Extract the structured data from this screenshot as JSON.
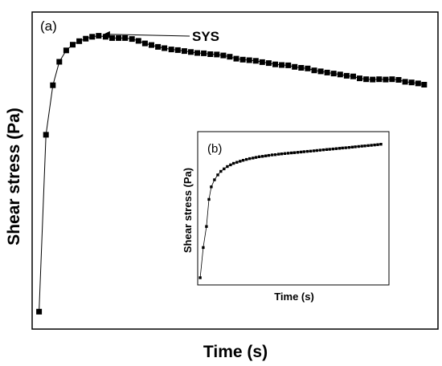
{
  "chart_data": [
    {
      "type": "line",
      "panel_label": "(a)",
      "xlabel": "Time (s)",
      "ylabel": "Shear stress (Pa)",
      "xlim": [
        0,
        100
      ],
      "ylim": [
        0,
        100
      ],
      "ticks": "none",
      "grid": false,
      "annotations": [
        {
          "text": "SYS",
          "target_x": 16.6,
          "target_y": 92.5
        }
      ],
      "series": [
        {
          "marker": "square",
          "x": [
            1.7,
            3.4,
            5.1,
            6.7,
            8.4,
            10.0,
            11.6,
            13.2,
            14.8,
            16.4,
            18.1,
            19.7,
            21.3,
            22.9,
            24.6,
            26.2,
            27.8,
            29.4,
            31.0,
            32.6,
            34.3,
            35.9,
            37.5,
            39.1,
            40.7,
            42.3,
            43.9,
            45.5,
            47.1,
            48.7,
            50.3,
            51.9,
            53.5,
            55.1,
            56.7,
            58.3,
            59.9,
            61.5,
            63.1,
            64.7,
            66.3,
            67.9,
            69.5,
            71.1,
            72.7,
            74.3,
            75.9,
            77.5,
            79.1,
            80.7,
            82.3,
            83.9,
            85.5,
            87.1,
            88.7,
            90.3,
            91.9,
            93.5,
            95.1,
            96.6
          ],
          "y": [
            5.5,
            61.3,
            76.9,
            84.3,
            87.9,
            89.7,
            90.8,
            91.6,
            92.2,
            92.5,
            92.2,
            91.8,
            91.8,
            91.8,
            91.5,
            90.9,
            90.1,
            89.6,
            89.0,
            88.6,
            88.2,
            88.0,
            87.7,
            87.4,
            87.1,
            87.0,
            86.7,
            86.6,
            86.3,
            85.9,
            85.3,
            85.0,
            84.8,
            84.6,
            84.2,
            83.9,
            83.5,
            83.3,
            83.2,
            82.7,
            82.4,
            82.2,
            81.6,
            81.3,
            80.9,
            80.6,
            80.3,
            79.9,
            79.7,
            79.1,
            78.8,
            78.7,
            78.8,
            78.7,
            78.8,
            78.6,
            78.0,
            77.8,
            77.5,
            77.1
          ]
        }
      ]
    },
    {
      "type": "line",
      "panel_label": "(b)",
      "xlabel": "Time (s)",
      "ylabel": "Shear stress (Pa)",
      "xlim": [
        0,
        100
      ],
      "ylim": [
        0,
        100
      ],
      "ticks": "none",
      "grid": false,
      "series": [
        {
          "marker": "square",
          "x": [
            1.3,
            2.9,
            4.6,
            5.9,
            7.1,
            8.8,
            10.5,
            12.1,
            13.8,
            15.5,
            17.2,
            18.8,
            20.5,
            22.2,
            23.8,
            25.5,
            27.2,
            28.9,
            30.5,
            32.2,
            33.9,
            35.6,
            37.2,
            38.9,
            40.6,
            42.3,
            43.9,
            45.6,
            47.3,
            49.0,
            50.6,
            52.3,
            54.0,
            55.6,
            57.3,
            59.0,
            60.7,
            62.3,
            64.0,
            65.7,
            67.4,
            69.0,
            70.7,
            72.4,
            74.1,
            75.7,
            77.4,
            79.1,
            80.8,
            82.4,
            84.1,
            85.8,
            87.4,
            89.1,
            90.8,
            92.5,
            94.1,
            95.8
          ],
          "y": [
            4.7,
            24.4,
            38.1,
            55.8,
            64.0,
            68.6,
            71.8,
            74.1,
            75.7,
            77.2,
            78.3,
            79.3,
            80.0,
            80.7,
            81.3,
            81.9,
            82.4,
            82.8,
            83.2,
            83.6,
            83.9,
            84.2,
            84.5,
            84.8,
            85.0,
            85.3,
            85.5,
            85.7,
            85.9,
            86.1,
            86.3,
            86.5,
            86.7,
            86.9,
            87.1,
            87.3,
            87.5,
            87.7,
            87.9,
            88.1,
            88.3,
            88.5,
            88.7,
            88.9,
            89.1,
            89.3,
            89.5,
            89.7,
            89.9,
            90.1,
            90.3,
            90.5,
            90.7,
            90.9,
            91.1,
            91.3,
            91.5,
            91.8
          ]
        }
      ]
    }
  ]
}
